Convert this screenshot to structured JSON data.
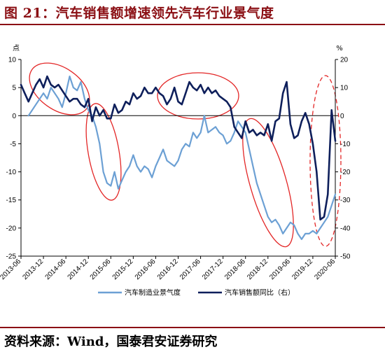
{
  "header": {
    "title": "图 21：汽车销售额增速领先汽车行业景气度"
  },
  "footer": {
    "source": "资料来源：Wind，国泰君安证券研究"
  },
  "colors": {
    "accent": "#8b0f14",
    "series_light": "#6ca0d4",
    "series_dark": "#0e1f5b",
    "annotation": "#e32626"
  },
  "chart_data": {
    "type": "line",
    "left_axis_unit": "点",
    "right_axis_unit": "%",
    "ylim_left": [
      -25,
      10
    ],
    "ylim_right": [
      -50,
      20
    ],
    "yticks_left": [
      10,
      5,
      0,
      -5,
      -10,
      -15,
      -20,
      -25
    ],
    "yticks_right": [
      20,
      10,
      0,
      -10,
      -20,
      -30,
      -40,
      -50
    ],
    "x_range": [
      "2013-06",
      "2020-06"
    ],
    "x_ticks": [
      "2013-06",
      "2013-12",
      "2014-06",
      "2014-12",
      "2015-06",
      "2015-12",
      "2016-06",
      "2016-12",
      "2017-06",
      "2017-12",
      "2018-06",
      "2018-12",
      "2019-06",
      "2019-12",
      "2020-06"
    ],
    "grid": false,
    "legend_position": "bottom",
    "annotation_ellipses": 6,
    "series": [
      {
        "name": "汽车制造业景气度",
        "axis": "left",
        "points": [
          [
            "2013-08",
            0
          ],
          [
            "2013-10",
            2
          ],
          [
            "2013-12",
            4
          ],
          [
            "2014-01",
            3
          ],
          [
            "2014-02",
            5
          ],
          [
            "2014-04",
            3
          ],
          [
            "2014-05",
            1.5
          ],
          [
            "2014-06",
            4
          ],
          [
            "2014-07",
            7
          ],
          [
            "2014-08",
            5
          ],
          [
            "2014-09",
            4.5
          ],
          [
            "2014-10",
            6
          ],
          [
            "2014-11",
            3
          ],
          [
            "2014-12",
            1
          ],
          [
            "2015-01",
            0
          ],
          [
            "2015-02",
            -2
          ],
          [
            "2015-03",
            -5
          ],
          [
            "2015-04",
            -10
          ],
          [
            "2015-05",
            -12
          ],
          [
            "2015-06",
            -12.5
          ],
          [
            "2015-07",
            -10
          ],
          [
            "2015-08",
            -13
          ],
          [
            "2015-09",
            -11.5
          ],
          [
            "2015-10",
            -10
          ],
          [
            "2015-11",
            -9
          ],
          [
            "2015-12",
            -7
          ],
          [
            "2016-01",
            -9
          ],
          [
            "2016-02",
            -10
          ],
          [
            "2016-03",
            -9
          ],
          [
            "2016-04",
            -9.5
          ],
          [
            "2016-05",
            -11
          ],
          [
            "2016-06",
            -9
          ],
          [
            "2016-07",
            -7.5
          ],
          [
            "2016-08",
            -6
          ],
          [
            "2016-09",
            -8
          ],
          [
            "2016-10",
            -8.5
          ],
          [
            "2016-11",
            -9
          ],
          [
            "2016-12",
            -8
          ],
          [
            "2017-01",
            -6
          ],
          [
            "2017-02",
            -5
          ],
          [
            "2017-03",
            -5.5
          ],
          [
            "2017-04",
            -3
          ],
          [
            "2017-05",
            -4
          ],
          [
            "2017-06",
            -3
          ],
          [
            "2017-07",
            0
          ],
          [
            "2017-08",
            -3
          ],
          [
            "2017-09",
            -2.5
          ],
          [
            "2017-10",
            -2
          ],
          [
            "2017-11",
            -3
          ],
          [
            "2017-12",
            -3.5
          ],
          [
            "2018-01",
            -5
          ],
          [
            "2018-02",
            -4.5
          ],
          [
            "2018-03",
            -3
          ],
          [
            "2018-04",
            -1
          ],
          [
            "2018-05",
            -2
          ],
          [
            "2018-06",
            -3
          ],
          [
            "2018-07",
            -6
          ],
          [
            "2018-08",
            -9
          ],
          [
            "2018-09",
            -12
          ],
          [
            "2018-10",
            -14
          ],
          [
            "2018-11",
            -16
          ],
          [
            "2018-12",
            -18
          ],
          [
            "2019-01",
            -19
          ],
          [
            "2019-02",
            -18.5
          ],
          [
            "2019-03",
            -19.5
          ],
          [
            "2019-04",
            -21
          ],
          [
            "2019-05",
            -20
          ],
          [
            "2019-06",
            -19
          ],
          [
            "2019-07",
            -19.5
          ],
          [
            "2019-08",
            -21
          ],
          [
            "2019-09",
            -22
          ],
          [
            "2019-10",
            -21
          ],
          [
            "2019-11",
            -21
          ],
          [
            "2019-12",
            -20.5
          ],
          [
            "2020-01",
            -21
          ],
          [
            "2020-02",
            -20
          ],
          [
            "2020-03",
            -19
          ],
          [
            "2020-04",
            -18
          ],
          [
            "2020-05",
            -16
          ],
          [
            "2020-06",
            -14
          ]
        ]
      },
      {
        "name": "汽车销售额同比（右）",
        "axis": "right",
        "points": [
          [
            "2013-06",
            11
          ],
          [
            "2013-07",
            8
          ],
          [
            "2013-08",
            5
          ],
          [
            "2013-09",
            8
          ],
          [
            "2013-10",
            11
          ],
          [
            "2013-11",
            13
          ],
          [
            "2013-12",
            10
          ],
          [
            "2014-01",
            14
          ],
          [
            "2014-02",
            11
          ],
          [
            "2014-03",
            10
          ],
          [
            "2014-04",
            11
          ],
          [
            "2014-05",
            9
          ],
          [
            "2014-06",
            7
          ],
          [
            "2014-07",
            5
          ],
          [
            "2014-08",
            6
          ],
          [
            "2014-09",
            6
          ],
          [
            "2014-10",
            4
          ],
          [
            "2014-11",
            3
          ],
          [
            "2014-12",
            6
          ],
          [
            "2015-01",
            -2
          ],
          [
            "2015-02",
            3
          ],
          [
            "2015-03",
            0
          ],
          [
            "2015-04",
            2
          ],
          [
            "2015-05",
            -1
          ],
          [
            "2015-06",
            -1
          ],
          [
            "2015-07",
            4
          ],
          [
            "2015-08",
            1
          ],
          [
            "2015-09",
            2
          ],
          [
            "2015-10",
            5
          ],
          [
            "2015-11",
            4
          ],
          [
            "2015-12",
            8
          ],
          [
            "2016-01",
            6
          ],
          [
            "2016-02",
            7
          ],
          [
            "2016-03",
            10
          ],
          [
            "2016-04",
            8
          ],
          [
            "2016-05",
            8
          ],
          [
            "2016-06",
            10
          ],
          [
            "2016-07",
            8
          ],
          [
            "2016-08",
            7
          ],
          [
            "2016-09",
            4
          ],
          [
            "2016-10",
            6
          ],
          [
            "2016-11",
            10
          ],
          [
            "2016-12",
            5
          ],
          [
            "2017-01",
            4
          ],
          [
            "2017-02",
            8
          ],
          [
            "2017-03",
            12
          ],
          [
            "2017-04",
            10
          ],
          [
            "2017-05",
            9
          ],
          [
            "2017-06",
            11
          ],
          [
            "2017-07",
            8
          ],
          [
            "2017-08",
            10
          ],
          [
            "2017-09",
            8
          ],
          [
            "2017-10",
            9
          ],
          [
            "2017-11",
            7
          ],
          [
            "2017-12",
            6
          ],
          [
            "2018-01",
            5
          ],
          [
            "2018-02",
            3
          ],
          [
            "2018-03",
            -4
          ],
          [
            "2018-04",
            -6
          ],
          [
            "2018-05",
            -8
          ],
          [
            "2018-06",
            -2
          ],
          [
            "2018-07",
            -6
          ],
          [
            "2018-08",
            -5
          ],
          [
            "2018-09",
            -7
          ],
          [
            "2018-10",
            -6
          ],
          [
            "2018-11",
            -7
          ],
          [
            "2018-12",
            -3
          ],
          [
            "2019-01",
            -9
          ],
          [
            "2019-02",
            -2
          ],
          [
            "2019-03",
            -1
          ],
          [
            "2019-04",
            8
          ],
          [
            "2019-05",
            12
          ],
          [
            "2019-06",
            -3
          ],
          [
            "2019-07",
            -8
          ],
          [
            "2019-08",
            -7
          ],
          [
            "2019-09",
            -2
          ],
          [
            "2019-10",
            1
          ],
          [
            "2019-11",
            -3
          ],
          [
            "2019-12",
            -10
          ],
          [
            "2020-01",
            -20
          ],
          [
            "2020-02",
            -37
          ],
          [
            "2020-03",
            -36
          ],
          [
            "2020-04",
            -28
          ],
          [
            "2020-05",
            2
          ],
          [
            "2020-06",
            -9
          ]
        ]
      }
    ]
  }
}
